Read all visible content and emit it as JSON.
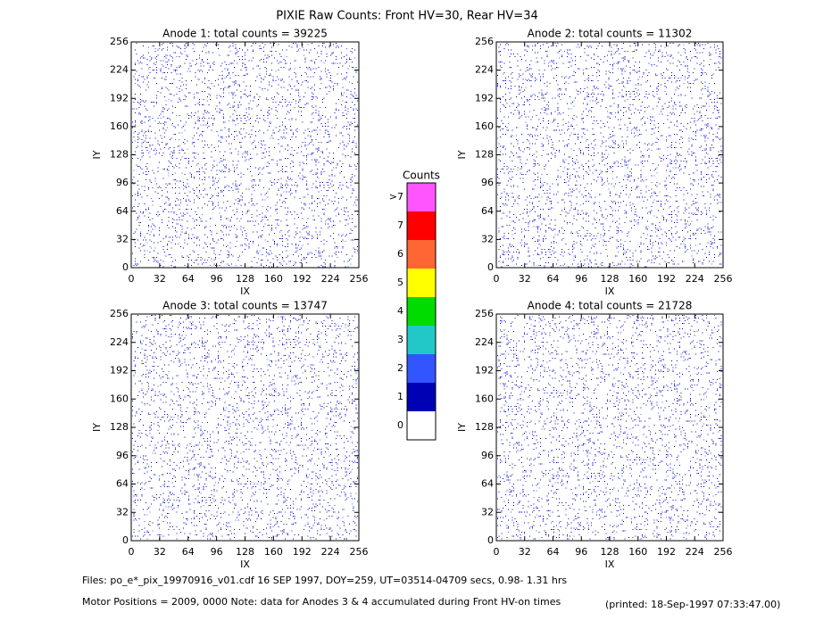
{
  "title": "PIXIE Raw Counts:  Front HV=30, Rear HV=34",
  "chart_data": [
    {
      "type": "heatmap",
      "title": "Anode 1: total counts = 39225",
      "x_label": "IX",
      "y_label": "IY",
      "xlim": [
        0,
        256
      ],
      "ylim": [
        0,
        256
      ],
      "xticks": [
        0,
        32,
        64,
        96,
        128,
        160,
        192,
        224,
        256
      ],
      "yticks": [
        0,
        32,
        64,
        96,
        128,
        160,
        192,
        224,
        256
      ]
    },
    {
      "type": "heatmap",
      "title": "Anode 2: total counts = 11302",
      "x_label": "IX",
      "y_label": "IY",
      "xlim": [
        0,
        256
      ],
      "ylim": [
        0,
        256
      ],
      "xticks": [
        0,
        32,
        64,
        96,
        128,
        160,
        192,
        224,
        256
      ],
      "yticks": [
        0,
        32,
        64,
        96,
        128,
        160,
        192,
        224,
        256
      ]
    },
    {
      "type": "heatmap",
      "title": "Anode 3: total counts = 13747",
      "x_label": "IX",
      "y_label": "IY",
      "xlim": [
        0,
        256
      ],
      "ylim": [
        0,
        256
      ],
      "xticks": [
        0,
        32,
        64,
        96,
        128,
        160,
        192,
        224,
        256
      ],
      "yticks": [
        0,
        32,
        64,
        96,
        128,
        160,
        192,
        224,
        256
      ]
    },
    {
      "type": "heatmap",
      "title": "Anode 4: total counts = 21728",
      "x_label": "IX",
      "y_label": "IY",
      "xlim": [
        0,
        256
      ],
      "ylim": [
        0,
        256
      ],
      "xticks": [
        0,
        32,
        64,
        96,
        128,
        160,
        192,
        224,
        256
      ],
      "yticks": [
        0,
        32,
        64,
        96,
        128,
        160,
        192,
        224,
        256
      ]
    }
  ],
  "colorbar": {
    "title": "Counts",
    "labels": [
      "0",
      "1",
      "2",
      "3",
      "4",
      "5",
      "6",
      "7",
      ">7"
    ],
    "colors": [
      "#ffffff",
      "#0000b4",
      "#3355ff",
      "#22c8c8",
      "#00dc00",
      "#ffff00",
      "#ff6633",
      "#ff0000",
      "#ff55ff"
    ]
  },
  "footer": {
    "files": "Files: po_e*_pix_19970916_v01.cdf    16 SEP 1997, DOY=259, UT=03514-04709 secs,  0.98- 1.31 hrs",
    "motor": "Motor Positions = 2009, 0000   Note: data for Anodes 3 & 4 accumulated during Front HV-on times",
    "printed": "(printed: 18-Sep-1997 07:33:47.00)"
  }
}
